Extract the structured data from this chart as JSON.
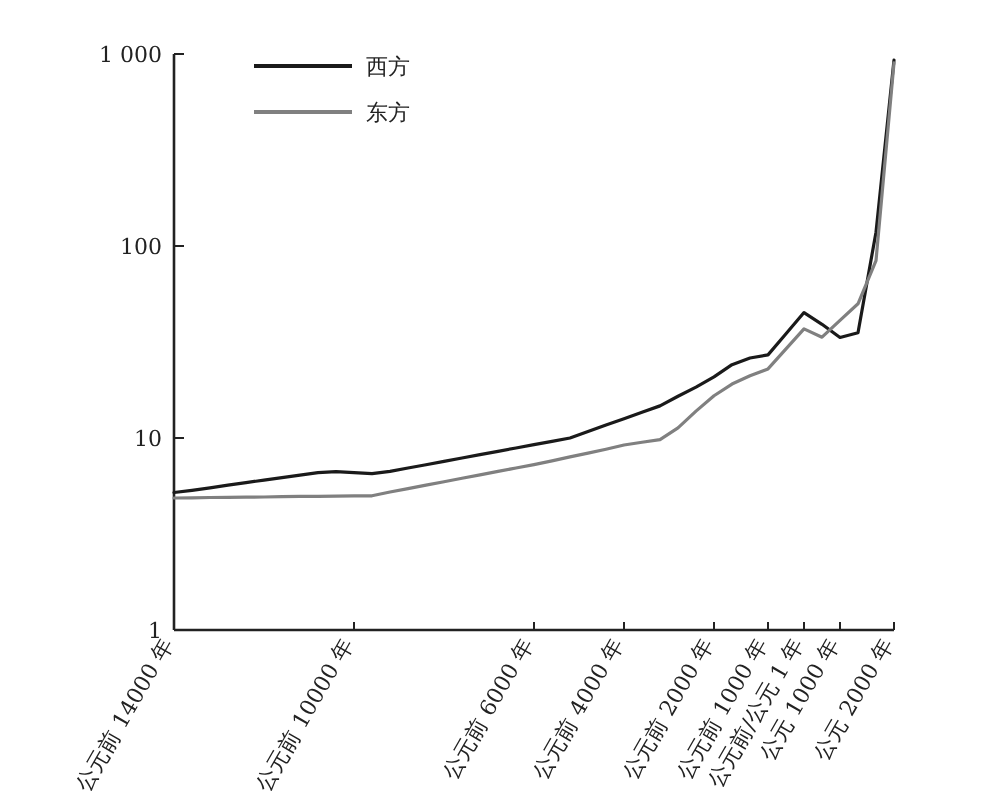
{
  "chart_data": {
    "type": "line",
    "log": "y",
    "ylim": [
      1,
      1000
    ],
    "categories": [
      "公元前 14000 年",
      null,
      null,
      null,
      null,
      null,
      null,
      null,
      null,
      null,
      "公元前 10000 年",
      null,
      null,
      null,
      null,
      null,
      null,
      null,
      null,
      null,
      "公元前 6000 年",
      null,
      null,
      null,
      null,
      "公元前 4000 年",
      null,
      null,
      null,
      null,
      "公元前 2000 年",
      null,
      null,
      "公元前 1000 年",
      null,
      "公元前/公元 1 年",
      null,
      "公元 1000 年",
      null,
      null,
      "公元 2000 年"
    ],
    "yticks": [
      1,
      10,
      100,
      {
        "value": 1000,
        "label": "1 000"
      }
    ],
    "legend": "top left",
    "grid": false,
    "marker": "none",
    "line_style": "solid",
    "series": [
      {
        "name": "西方",
        "color": "#1a1a1a",
        "values": [
          5.2,
          5.34,
          5.5,
          5.68,
          5.86,
          6.03,
          6.22,
          6.41,
          6.6,
          6.68,
          6.6,
          6.52,
          6.7,
          6.98,
          7.26,
          7.56,
          7.87,
          8.19,
          8.52,
          8.87,
          9.23,
          9.6,
          10,
          10.8,
          11.7,
          12.6,
          13.6,
          14.7,
          16.5,
          18.4,
          20.8,
          24.1,
          26.1,
          27.1,
          34.9,
          45,
          39.1,
          33.4,
          35.3,
          118,
          930
        ]
      },
      {
        "name": "东方",
        "color": "#808080",
        "values": [
          4.87,
          4.88,
          4.9,
          4.91,
          4.92,
          4.93,
          4.95,
          4.96,
          4.97,
          4.98,
          4.99,
          5.0,
          5.23,
          5.45,
          5.68,
          5.92,
          6.17,
          6.43,
          6.7,
          6.98,
          7.27,
          7.6,
          7.97,
          8.34,
          8.74,
          9.2,
          9.5,
          9.8,
          11.3,
          13.8,
          16.6,
          19.1,
          21.1,
          22.9,
          29.1,
          37,
          33.5,
          41,
          50,
          84,
          900
        ]
      }
    ]
  }
}
